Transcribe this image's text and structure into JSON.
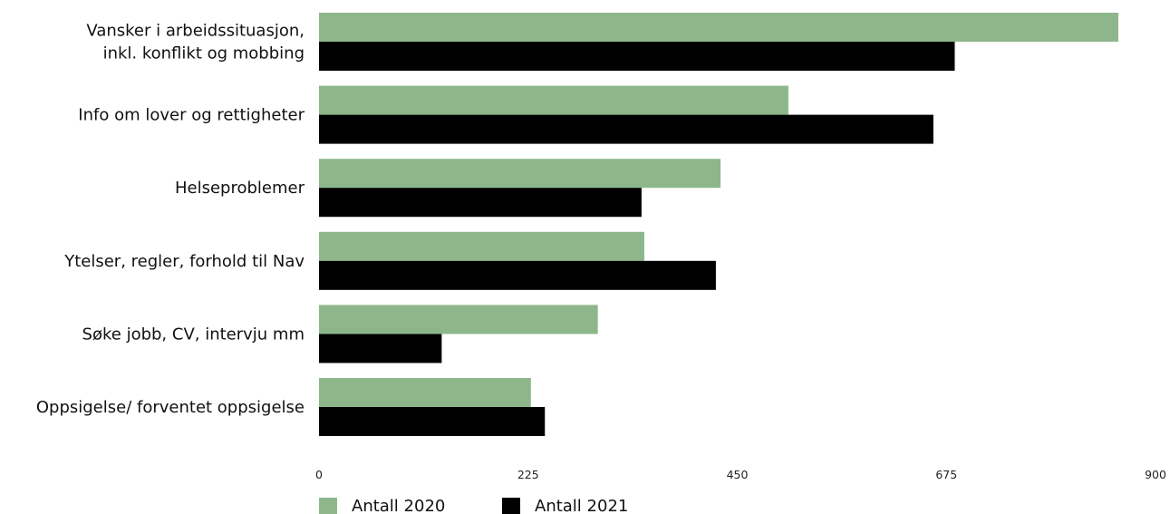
{
  "chart_data": {
    "type": "bar",
    "orientation": "horizontal",
    "categories": [
      [
        "Vansker i arbeidssituasjon,",
        "inkl. konflikt og mobbing"
      ],
      [
        "Info om lover og rettigheter"
      ],
      [
        "Helseproblemer"
      ],
      [
        "Ytelser, regler, forhold til Nav"
      ],
      [
        "Søke jobb,  CV, intervju mm"
      ],
      [
        "Oppsigelse/ forventet oppsigelse"
      ]
    ],
    "series": [
      {
        "name": "Antall 2020",
        "color": "#8db78a",
        "values": [
          860,
          505,
          432,
          350,
          300,
          228
        ]
      },
      {
        "name": "Antall 2021",
        "color": "#000000",
        "values": [
          684,
          661,
          347,
          427,
          132,
          243
        ]
      }
    ],
    "xlim": [
      0,
      900
    ],
    "xticks": [
      "0",
      "225",
      "450",
      "675",
      "900"
    ],
    "grid": false,
    "legend_position": "bottom-left"
  }
}
